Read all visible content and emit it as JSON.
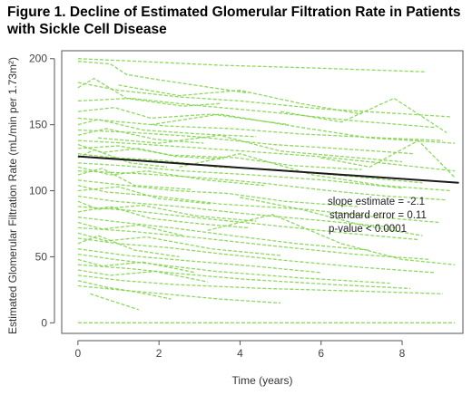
{
  "figure": {
    "title_line1": "Figure 1. Decline of Estimated Glomerular Filtration Rate in Patients",
    "title_line2": "with Sickle Cell Disease"
  },
  "chart_data": {
    "type": "line",
    "title": "Figure 1. Decline of Estimated Glomerular Filtration Rate in Patients with Sickle Cell Disease",
    "xlabel": "Time (years)",
    "ylabel": "Estimated Glomerular Filtration Rate (mL/min per 1.73m²)",
    "xlim": [
      -0.4,
      9.5
    ],
    "ylim": [
      -8,
      206
    ],
    "x_ticks": [
      0,
      2,
      4,
      6,
      8
    ],
    "y_ticks": [
      0,
      50,
      100,
      150,
      200
    ],
    "grid": false,
    "colors": {
      "patient_lines": "#7fd64a",
      "regression_line": "#1a1a1a"
    },
    "regression_line": {
      "x": [
        0,
        9.4
      ],
      "y": [
        126,
        106
      ]
    },
    "annotations": [
      "slope estimate = -2.1",
      "standard error = 0.11",
      "p-value < 0.0001"
    ],
    "series_description": "Individual patient eGFR trajectories",
    "series": [
      {
        "x": [
          0,
          1.5,
          3.5,
          5.8,
          8.6
        ],
        "y": [
          200,
          198,
          195,
          193,
          190
        ]
      },
      {
        "x": [
          0,
          0.8,
          1.2,
          2.0,
          4.2
        ],
        "y": [
          198,
          196,
          188,
          184,
          174
        ]
      },
      {
        "x": [
          0,
          1.0,
          2.5,
          4.0,
          6.0,
          9.2
        ],
        "y": [
          182,
          176,
          171,
          168,
          162,
          156
        ]
      },
      {
        "x": [
          0,
          0.4,
          1.2,
          2.6,
          3.5
        ],
        "y": [
          178,
          185,
          170,
          164,
          166
        ]
      },
      {
        "x": [
          0,
          1.3,
          2.8,
          4.6,
          6.8,
          8.8
        ],
        "y": [
          168,
          170,
          165,
          160,
          153,
          148
        ]
      },
      {
        "x": [
          0,
          0.9,
          1.8,
          3.3,
          5.2
        ],
        "y": [
          160,
          163,
          155,
          158,
          150
        ]
      },
      {
        "x": [
          0,
          1.1,
          2.2,
          3.8,
          5.5,
          7.5,
          9.0
        ],
        "y": [
          155,
          152,
          149,
          147,
          143,
          140,
          138
        ]
      },
      {
        "x": [
          0,
          0.5,
          1.6,
          3.0,
          4.4
        ],
        "y": [
          150,
          154,
          146,
          143,
          141
        ]
      },
      {
        "x": [
          0,
          1.4,
          2.9,
          4.8,
          6.4,
          8.3
        ],
        "y": [
          146,
          144,
          141,
          135,
          132,
          128
        ]
      },
      {
        "x": [
          0,
          0.7,
          1.9,
          3.1
        ],
        "y": [
          142,
          147,
          139,
          136
        ]
      },
      {
        "x": [
          0,
          1.2,
          2.7,
          4.1,
          5.9,
          7.8,
          9.3
        ],
        "y": [
          138,
          136,
          133,
          130,
          126,
          120,
          115
        ]
      },
      {
        "x": [
          0,
          0.6,
          1.5,
          2.4,
          3.6
        ],
        "y": [
          135,
          129,
          132,
          126,
          124
        ]
      },
      {
        "x": [
          0,
          1.0,
          2.3,
          3.9,
          5.3,
          7.0
        ],
        "y": [
          132,
          134,
          127,
          125,
          119,
          116
        ]
      },
      {
        "x": [
          0,
          0.9,
          2.1,
          3.4,
          4.9,
          6.7,
          8.5
        ],
        "y": [
          128,
          125,
          123,
          118,
          116,
          111,
          106
        ]
      },
      {
        "x": [
          0,
          0.4,
          1.3,
          2.2
        ],
        "y": [
          125,
          131,
          121,
          118
        ]
      },
      {
        "x": [
          0,
          1.1,
          2.6,
          4.3,
          6.1,
          8.0
        ],
        "y": [
          121,
          119,
          115,
          112,
          108,
          102
        ]
      },
      {
        "x": [
          0,
          0.8,
          1.7,
          3.2,
          4.6
        ],
        "y": [
          118,
          112,
          115,
          108,
          104
        ]
      },
      {
        "x": [
          0,
          1.5,
          3.0,
          4.5,
          6.2,
          7.6,
          9.1
        ],
        "y": [
          115,
          113,
          110,
          106,
          100,
          96,
          93
        ]
      },
      {
        "x": [
          0,
          0.6,
          1.4,
          2.8
        ],
        "y": [
          112,
          117,
          104,
          101
        ]
      },
      {
        "x": [
          0,
          1.2,
          2.4,
          3.7,
          5.1,
          6.9
        ],
        "y": [
          108,
          104,
          100,
          98,
          92,
          88
        ]
      },
      {
        "x": [
          0,
          0.7,
          1.9,
          3.5,
          5.6,
          7.4,
          8.9
        ],
        "y": [
          104,
          99,
          96,
          90,
          86,
          80,
          76
        ]
      },
      {
        "x": [
          0,
          1.0,
          2.0,
          3.3
        ],
        "y": [
          100,
          103,
          94,
          90
        ]
      },
      {
        "x": [
          0,
          0.9,
          2.5,
          4.0,
          5.8,
          7.9
        ],
        "y": [
          96,
          92,
          88,
          83,
          78,
          72
        ]
      },
      {
        "x": [
          0,
          0.5,
          1.6,
          2.9,
          4.4
        ],
        "y": [
          92,
          86,
          89,
          81,
          77
        ]
      },
      {
        "x": [
          0,
          1.3,
          2.8,
          4.7,
          6.6,
          8.4
        ],
        "y": [
          88,
          85,
          80,
          74,
          68,
          63
        ]
      },
      {
        "x": [
          0,
          0.8,
          1.8,
          3.0,
          4.2
        ],
        "y": [
          84,
          88,
          79,
          75,
          72
        ]
      },
      {
        "x": [
          0,
          1.1,
          2.3,
          3.8,
          5.4,
          7.2
        ],
        "y": [
          80,
          76,
          72,
          66,
          60,
          55
        ]
      },
      {
        "x": [
          0,
          0.6,
          1.5,
          2.6
        ],
        "y": [
          76,
          71,
          74,
          66
        ]
      },
      {
        "x": [
          0,
          1.4,
          3.1,
          4.9,
          6.8,
          8.7
        ],
        "y": [
          72,
          69,
          64,
          58,
          52,
          48
        ]
      },
      {
        "x": [
          0,
          0.7,
          1.7,
          3.3,
          5.0
        ],
        "y": [
          68,
          62,
          65,
          56,
          51
        ]
      },
      {
        "x": [
          0,
          1.0,
          2.2,
          3.6,
          5.2,
          7.0,
          8.8
        ],
        "y": [
          64,
          60,
          57,
          52,
          47,
          42,
          38
        ]
      },
      {
        "x": [
          0,
          0.5,
          1.4,
          2.5
        ],
        "y": [
          60,
          66,
          55,
          50
        ]
      },
      {
        "x": [
          0,
          1.2,
          2.7,
          4.3,
          6.0
        ],
        "y": [
          56,
          51,
          47,
          43,
          38
        ]
      },
      {
        "x": [
          0,
          0.9,
          2.0,
          3.4,
          5.5,
          7.7
        ],
        "y": [
          52,
          48,
          44,
          39,
          34,
          30
        ]
      },
      {
        "x": [
          0,
          0.6,
          1.6,
          2.9
        ],
        "y": [
          48,
          43,
          46,
          38
        ]
      },
      {
        "x": [
          0,
          1.3,
          2.6,
          4.1,
          6.3,
          8.2
        ],
        "y": [
          44,
          41,
          37,
          33,
          29,
          26
        ]
      },
      {
        "x": [
          0,
          0.8,
          1.9,
          3.2
        ],
        "y": [
          40,
          36,
          39,
          31
        ]
      },
      {
        "x": [
          0,
          1.1,
          2.4,
          4.6,
          6.9,
          9.0
        ],
        "y": [
          36,
          32,
          29,
          26,
          24,
          22
        ]
      },
      {
        "x": [
          0,
          0.7,
          1.5,
          2.3
        ],
        "y": [
          32,
          27,
          23,
          18
        ]
      },
      {
        "x": [
          0,
          1.0,
          2.1,
          3.5,
          5.0
        ],
        "y": [
          28,
          25,
          22,
          18,
          15
        ]
      },
      {
        "x": [
          0.3,
          1.0,
          1.5
        ],
        "y": [
          22,
          15,
          10
        ]
      },
      {
        "x": [
          0,
          2.0,
          5.0,
          9.3
        ],
        "y": [
          0,
          0,
          0,
          0
        ]
      },
      {
        "x": [
          1.8,
          3.5,
          5.5,
          7.2,
          9.3
        ],
        "y": [
          150,
          158,
          148,
          140,
          136
        ]
      },
      {
        "x": [
          2.5,
          4.0,
          5.8,
          7.5,
          9.2
        ],
        "y": [
          118,
          128,
          112,
          104,
          100
        ]
      },
      {
        "x": [
          3.2,
          4.8,
          6.5,
          8.0,
          9.3
        ],
        "y": [
          70,
          82,
          60,
          48,
          44
        ]
      },
      {
        "x": [
          4.0,
          5.5,
          7.0,
          8.5
        ],
        "y": [
          95,
          86,
          74,
          66
        ]
      },
      {
        "x": [
          5.0,
          6.5,
          7.8,
          9.1
        ],
        "y": [
          160,
          152,
          170,
          144
        ]
      },
      {
        "x": [
          6.0,
          7.2,
          8.4,
          9.3
        ],
        "y": [
          125,
          118,
          138,
          110
        ]
      },
      {
        "x": [
          1.0,
          2.5,
          4.0,
          5.5,
          7.0
        ],
        "y": [
          180,
          172,
          176,
          166,
          158
        ]
      },
      {
        "x": [
          0.5,
          2.0,
          3.5,
          5.0,
          6.5,
          8.0
        ],
        "y": [
          140,
          136,
          142,
          130,
          126,
          122
        ]
      }
    ]
  }
}
